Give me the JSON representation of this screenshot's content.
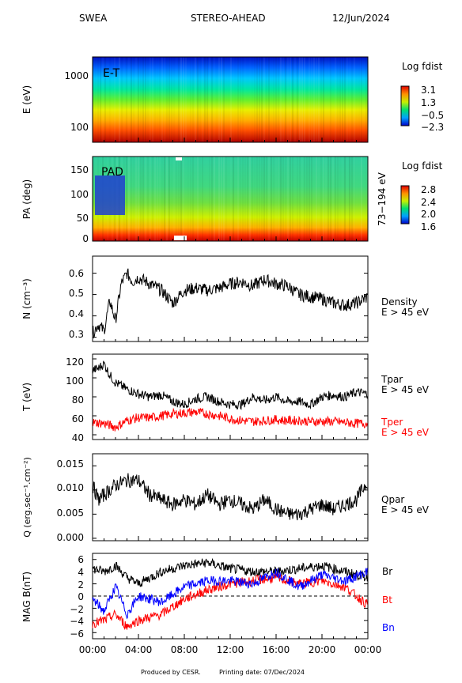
{
  "header": {
    "instrument": "SWEA",
    "spacecraft": "STEREO-AHEAD",
    "date": "12/Jun/2024"
  },
  "footer": {
    "produced": "Produced by CESR.",
    "printing": "Printing date: 07/Dec/2024"
  },
  "colors": {
    "black": "#000000",
    "red": "#ff0000",
    "blue": "#0000ff"
  },
  "x_axis": {
    "ticks": [
      "00:00",
      "04:00",
      "08:00",
      "12:00",
      "16:00",
      "20:00",
      "00:00"
    ]
  },
  "chart_data": [
    {
      "type": "heatmap",
      "panel_label": "E-T",
      "ylabel": "E (eV)",
      "yscale": "log",
      "yticks": [
        "100",
        "1000"
      ],
      "colorbar": {
        "title": "Log fdist",
        "ticks": [
          "3.1",
          "1.3",
          "−0.5",
          "−2.3"
        ]
      },
      "values": [
        {
          "energy": 50,
          "log_fdist": 3.0
        },
        {
          "energy": 100,
          "log_fdist": 2.4
        },
        {
          "energy": 200,
          "log_fdist": 1.6
        },
        {
          "energy": 400,
          "log_fdist": 0.8
        },
        {
          "energy": 800,
          "log_fdist": 0.0
        },
        {
          "energy": 1500,
          "log_fdist": -1.2
        },
        {
          "energy": 2000,
          "log_fdist": -2.2
        }
      ]
    },
    {
      "type": "heatmap",
      "panel_label": "PAD",
      "ylabel": "PA (deg)",
      "right_label": "73−194 eV",
      "yticks": [
        "0",
        "50",
        "100",
        "150"
      ],
      "colorbar": {
        "title": "Log fdist",
        "ticks": [
          "2.8",
          "2.4",
          "2.0",
          "1.6"
        ]
      },
      "values": [
        {
          "pa": 10,
          "log_fdist": 2.7
        },
        {
          "pa": 50,
          "log_fdist": 2.3
        },
        {
          "pa": 100,
          "log_fdist": 2.1
        },
        {
          "pa": 150,
          "log_fdist": 2.2
        }
      ]
    },
    {
      "type": "line",
      "ylabel": "N (cm⁻³)",
      "right_label": [
        "Density",
        "E > 45 eV"
      ],
      "yticks": [
        "0.3",
        "0.4",
        "0.5",
        "0.6"
      ],
      "ylim": [
        0.28,
        0.68
      ],
      "series": [
        {
          "values_t_hours": [
            0,
            0.5,
            1,
            1.5,
            2,
            2.5,
            3,
            3.5,
            4,
            5,
            6,
            7,
            8,
            9,
            10,
            11,
            12,
            13,
            14,
            15,
            16,
            17,
            18,
            19,
            20,
            21,
            22,
            23,
            24
          ],
          "y": [
            0.32,
            0.36,
            0.33,
            0.47,
            0.38,
            0.55,
            0.6,
            0.56,
            0.58,
            0.55,
            0.52,
            0.46,
            0.52,
            0.53,
            0.52,
            0.53,
            0.55,
            0.56,
            0.54,
            0.57,
            0.55,
            0.54,
            0.5,
            0.49,
            0.48,
            0.46,
            0.45,
            0.46,
            0.49
          ]
        }
      ]
    },
    {
      "type": "line",
      "ylabel": "T (eV)",
      "right_label_black": [
        "Tpar",
        "E > 45 eV"
      ],
      "right_label_red": [
        "Tper",
        "E > 45 eV"
      ],
      "yticks": [
        "40",
        "60",
        "80",
        "100",
        "120"
      ],
      "ylim": [
        35,
        125
      ],
      "series": [
        {
          "name": "Tpar",
          "color": "#000000",
          "values_t_hours": [
            0,
            0.5,
            1,
            1.5,
            2,
            3,
            4,
            5,
            6,
            7,
            8,
            9,
            10,
            11,
            12,
            13,
            14,
            15,
            16,
            17,
            18,
            19,
            20,
            21,
            22,
            23,
            24
          ],
          "y": [
            108,
            110,
            115,
            103,
            95,
            88,
            83,
            80,
            82,
            75,
            72,
            78,
            80,
            75,
            72,
            72,
            80,
            76,
            80,
            75,
            75,
            72,
            80,
            82,
            80,
            85,
            83
          ]
        },
        {
          "name": "Tper",
          "color": "#ff0000",
          "values_t_hours": [
            0,
            1,
            2,
            3,
            4,
            5,
            6,
            7,
            8,
            9,
            10,
            11,
            12,
            13,
            14,
            15,
            16,
            17,
            18,
            19,
            20,
            21,
            22,
            23,
            24
          ],
          "y": [
            53,
            52,
            48,
            55,
            58,
            58,
            60,
            62,
            63,
            64,
            62,
            60,
            57,
            55,
            54,
            55,
            56,
            55,
            55,
            54,
            54,
            54,
            53,
            52,
            52
          ]
        }
      ]
    },
    {
      "type": "line",
      "ylabel": "Q (erg.sec⁻¹.cm⁻²)",
      "right_label": [
        "Qpar",
        "E > 45 eV"
      ],
      "yticks": [
        "0.000",
        "0.005",
        "0.010",
        "0.015"
      ],
      "ylim": [
        -0.0005,
        0.0175
      ],
      "series": [
        {
          "values_t_hours": [
            0,
            0.5,
            1,
            2,
            3,
            4,
            5,
            6,
            7,
            8,
            9,
            10,
            11,
            12,
            13,
            14,
            15,
            16,
            17,
            18,
            19,
            20,
            21,
            22,
            23,
            24
          ],
          "y": [
            0.011,
            0.008,
            0.009,
            0.011,
            0.012,
            0.012,
            0.009,
            0.008,
            0.007,
            0.008,
            0.007,
            0.009,
            0.007,
            0.008,
            0.007,
            0.006,
            0.008,
            0.006,
            0.005,
            0.005,
            0.006,
            0.007,
            0.006,
            0.007,
            0.008,
            0.012
          ]
        }
      ]
    },
    {
      "type": "line",
      "ylabel": "MAG B(nT)",
      "right_labels": [
        "Br",
        "Bt",
        "Bn"
      ],
      "yticks": [
        "−6",
        "−4",
        "−2",
        "0",
        "2",
        "4",
        "6"
      ],
      "ylim": [
        -7,
        7
      ],
      "series": [
        {
          "name": "Br",
          "color": "#000000",
          "values_t_hours": [
            0,
            1,
            2,
            3,
            4,
            6,
            8,
            10,
            12,
            14,
            16,
            18,
            20,
            22,
            24
          ],
          "y": [
            4.5,
            4.0,
            5.0,
            3.0,
            2.0,
            4.0,
            5.0,
            5.5,
            4.5,
            4.0,
            4.0,
            4.5,
            5.0,
            4.0,
            3.0
          ]
        },
        {
          "name": "Bt",
          "color": "#ff0000",
          "values_t_hours": [
            0,
            1,
            2,
            3,
            4,
            6,
            8,
            10,
            12,
            14,
            16,
            18,
            20,
            22,
            24
          ],
          "y": [
            -4.5,
            -4.0,
            -3.0,
            -5.0,
            -4.0,
            -3.0,
            -0.5,
            1.0,
            2.0,
            2.5,
            3.0,
            2.0,
            2.5,
            1.5,
            -1.5
          ]
        },
        {
          "name": "Bn",
          "color": "#0000ff",
          "values_t_hours": [
            0,
            1,
            2,
            3,
            4,
            6,
            8,
            10,
            12,
            14,
            16,
            18,
            20,
            22,
            24
          ],
          "y": [
            -0.5,
            -2.5,
            1.5,
            -3.0,
            0.0,
            -1.0,
            1.5,
            2.5,
            2.5,
            2.0,
            4.0,
            1.5,
            3.5,
            2.5,
            4.0
          ]
        }
      ]
    }
  ]
}
